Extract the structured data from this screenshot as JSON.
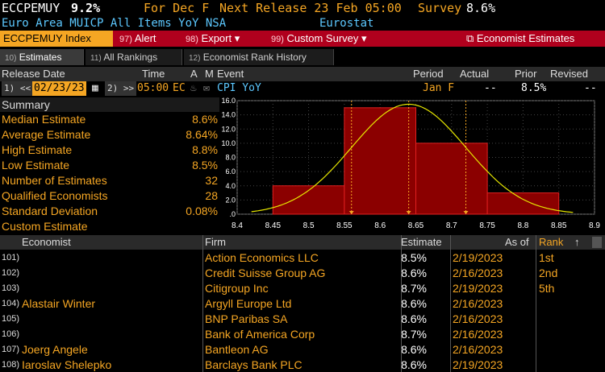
{
  "header": {
    "ticker": "ECCPEMUY",
    "value": "9.2%",
    "for_label": "For Dec F",
    "next_release_label": "Next Release 23 Feb 05:00",
    "survey_label": "Survey",
    "survey_value": "8.6%",
    "description": "Euro Area MUICP All Items YoY NSA",
    "source": "Eurostat"
  },
  "toolbar": {
    "index_label": "ECCPEMUY Index",
    "alert_num": "97)",
    "alert_label": "Alert",
    "export_num": "98)",
    "export_label": "Export",
    "custom_num": "99)",
    "custom_label": "Custom Survey",
    "economist_label": "Economist Estimates"
  },
  "tabs": [
    {
      "num": "10)",
      "label": "Estimates"
    },
    {
      "num": "11)",
      "label": "All Rankings"
    },
    {
      "num": "12)",
      "label": "Economist Rank History"
    }
  ],
  "columns": {
    "release_date": "Release Date",
    "time": "Time",
    "a": "A",
    "m": "M",
    "event": "Event",
    "period": "Period",
    "actual": "Actual",
    "prior": "Prior",
    "revised": "Revised"
  },
  "event_row": {
    "prev_btn": "1) <<",
    "date": "02/23/23",
    "next_btn": "2) >>",
    "time": "05:00",
    "region": "EC",
    "event": "CPI YoY",
    "period": "Jan F",
    "actual": "--",
    "prior": "8.5%",
    "revised": "--"
  },
  "summary": {
    "title": "Summary",
    "items": [
      {
        "label": "Median Estimate",
        "value": "8.6%"
      },
      {
        "label": "Average Estimate",
        "value": "8.64%"
      },
      {
        "label": "High Estimate",
        "value": "8.8%"
      },
      {
        "label": "Low Estimate",
        "value": "8.5%"
      },
      {
        "label": "Number of Estimates",
        "value": "32"
      },
      {
        "label": "Qualified Economists",
        "value": "28"
      },
      {
        "label": "Standard Deviation",
        "value": "0.08%"
      },
      {
        "label": "Custom Estimate",
        "value": ""
      }
    ]
  },
  "colors": {
    "amber": "#f5a623",
    "bar_fill": "#8b0000",
    "bar_edge": "#e02020",
    "curve": "#e6e600",
    "toolbar_bg": "#b0001d"
  },
  "chart_data": {
    "type": "bar",
    "bin_width": 0.1,
    "bins": [
      {
        "center": 8.5,
        "value": 4
      },
      {
        "center": 8.6,
        "value": 15
      },
      {
        "center": 8.7,
        "value": 10
      },
      {
        "center": 8.8,
        "value": 3
      }
    ],
    "overlay_curve": {
      "type": "normal",
      "peak_x": 8.64,
      "peak_y": 15.5,
      "sigma": 0.08
    },
    "markers": [
      8.56,
      8.64,
      8.72
    ],
    "xlim": [
      8.4,
      8.9
    ],
    "ylim": [
      0,
      16
    ],
    "x_ticks": [
      "8.4",
      "8.45",
      "8.5",
      "8.55",
      "8.6",
      "8.65",
      "8.7",
      "8.75",
      "8.8",
      "8.85",
      "8.9"
    ],
    "y_ticks": [
      ".0",
      "2.0",
      "4.0",
      "6.0",
      "8.0",
      "10.0",
      "12.0",
      "14.0",
      "16.0"
    ],
    "grid": true
  },
  "table": {
    "headers": {
      "economist": "Economist",
      "firm": "Firm",
      "estimate": "Estimate",
      "as_of": "As of",
      "rank": "Rank"
    },
    "rows": [
      {
        "idx": "101)",
        "economist": "",
        "firm": "Action Economics LLC",
        "estimate": "8.5%",
        "as_of": "2/19/2023",
        "rank": "1st"
      },
      {
        "idx": "102)",
        "economist": "",
        "firm": "Credit Suisse Group AG",
        "estimate": "8.6%",
        "as_of": "2/16/2023",
        "rank": "2nd"
      },
      {
        "idx": "103)",
        "economist": "",
        "firm": "Citigroup Inc",
        "estimate": "8.7%",
        "as_of": "2/19/2023",
        "rank": "5th"
      },
      {
        "idx": "104)",
        "economist": "Alastair Winter",
        "firm": "Argyll Europe Ltd",
        "estimate": "8.6%",
        "as_of": "2/16/2023",
        "rank": ""
      },
      {
        "idx": "105)",
        "economist": "",
        "firm": "BNP Paribas SA",
        "estimate": "8.6%",
        "as_of": "2/16/2023",
        "rank": ""
      },
      {
        "idx": "106)",
        "economist": "",
        "firm": "Bank of America Corp",
        "estimate": "8.7%",
        "as_of": "2/16/2023",
        "rank": ""
      },
      {
        "idx": "107)",
        "economist": "Joerg Angele",
        "firm": "Bantleon AG",
        "estimate": "8.6%",
        "as_of": "2/16/2023",
        "rank": ""
      },
      {
        "idx": "108)",
        "economist": "Iaroslav Shelepko",
        "firm": "Barclays Bank PLC",
        "estimate": "8.6%",
        "as_of": "2/19/2023",
        "rank": ""
      }
    ]
  }
}
